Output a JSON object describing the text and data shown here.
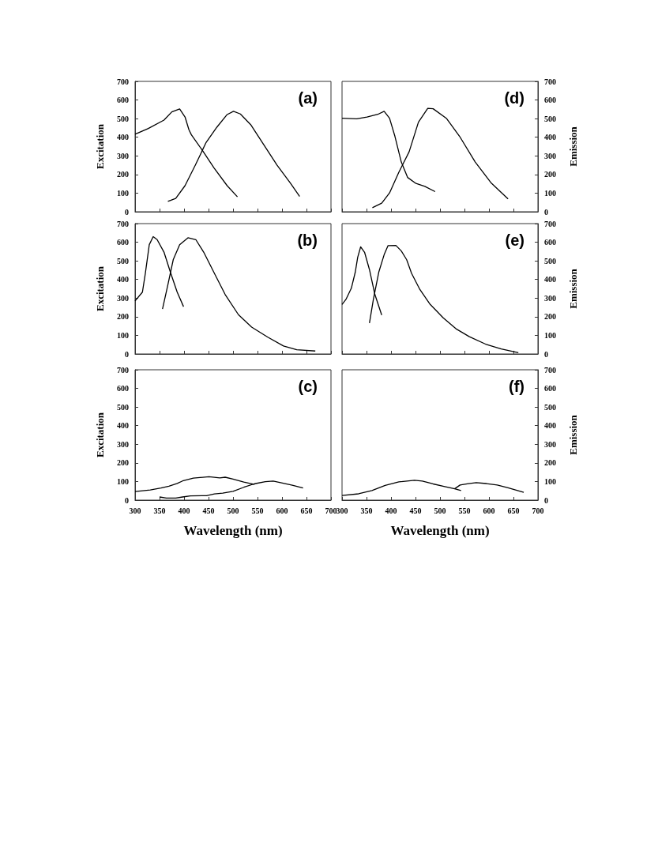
{
  "chart_data": [
    {
      "type": "line",
      "title": "(a)",
      "ylabel": "Excitation",
      "xlim": [
        300,
        700
      ],
      "xticks": [
        300,
        350,
        400,
        450,
        500,
        550,
        600,
        650,
        700
      ],
      "ylim": [
        0,
        700
      ],
      "yticks": [
        0,
        100,
        200,
        300,
        400,
        500,
        600,
        700
      ],
      "tick_labels": "y",
      "series": [
        {
          "color": "#000000",
          "x": [
            300,
            327,
            359,
            375,
            391,
            402,
            410,
            415,
            437,
            461,
            488,
            509
          ],
          "values": [
            416,
            447,
            492,
            536,
            552,
            509,
            440,
            413,
            331,
            236,
            140,
            80
          ]
        },
        {
          "color": "#000000",
          "x": [
            367,
            383,
            402,
            423,
            445,
            467,
            488,
            501,
            515,
            536,
            563,
            590,
            617,
            636
          ],
          "values": [
            56,
            72,
            140,
            250,
            372,
            454,
            522,
            539,
            525,
            468,
            359,
            250,
            154,
            82
          ]
        }
      ]
    },
    {
      "type": "line",
      "title": "(b)",
      "ylabel": "Excitation",
      "xlim": [
        300,
        700
      ],
      "xticks": [
        300,
        350,
        400,
        450,
        500,
        550,
        600,
        650,
        700
      ],
      "ylim": [
        0,
        700
      ],
      "yticks": [
        0,
        100,
        200,
        300,
        400,
        500,
        600,
        700
      ],
      "tick_labels": "y",
      "series": [
        {
          "color": "#000000",
          "x": [
            300,
            315,
            321,
            329,
            337,
            345,
            359,
            372,
            386,
            399
          ],
          "values": [
            285,
            332,
            433,
            587,
            630,
            614,
            547,
            440,
            332,
            254
          ]
        },
        {
          "color": "#000000",
          "x": [
            356,
            367,
            378,
            391,
            408,
            424,
            440,
            462,
            484,
            511,
            538,
            571,
            603,
            630,
            668
          ],
          "values": [
            241,
            372,
            507,
            587,
            624,
            614,
            547,
            433,
            319,
            211,
            144,
            90,
            43,
            23,
            16
          ]
        }
      ]
    },
    {
      "type": "line",
      "title": "(c)",
      "ylabel": "Excitation",
      "xlabel": "Wavelength (nm)",
      "xlim": [
        300,
        700
      ],
      "xticks": [
        300,
        350,
        400,
        450,
        500,
        550,
        600,
        650,
        700
      ],
      "ylim": [
        0,
        700
      ],
      "yticks": [
        0,
        100,
        200,
        300,
        400,
        500,
        600,
        700
      ],
      "series": [
        {
          "color": "#000000",
          "x": [
            300,
            331,
            353,
            369,
            386,
            397,
            419,
            451,
            473,
            484,
            500,
            522,
            544
          ],
          "values": [
            46,
            55,
            65,
            75,
            90,
            103,
            118,
            126,
            119,
            123,
            113,
            97,
            84
          ]
        },
        {
          "color": "#000000",
          "x": [
            350,
            364,
            383,
            397,
            413,
            446,
            462,
            479,
            500,
            522,
            544,
            566,
            582,
            599,
            621,
            643
          ],
          "values": [
            17,
            11,
            11,
            17,
            23,
            24,
            33,
            38,
            47,
            69,
            88,
            99,
            102,
            93,
            80,
            65
          ]
        }
      ]
    },
    {
      "type": "line",
      "title": "(d)",
      "y2label": "Emission",
      "xlim": [
        300,
        700
      ],
      "xticks": [
        300,
        350,
        400,
        450,
        500,
        550,
        600,
        650,
        700
      ],
      "y2lim": [
        0,
        700
      ],
      "y2ticks": [
        0,
        100,
        200,
        300,
        400,
        500,
        600,
        700
      ],
      "tick_labels": "y",
      "series": [
        {
          "color": "#000000",
          "axis": "y2",
          "x": [
            300,
            330,
            351,
            373,
            386,
            397,
            408,
            421,
            434,
            451,
            469,
            490
          ],
          "values": [
            502,
            499,
            509,
            523,
            539,
            502,
            405,
            267,
            184,
            152,
            136,
            108
          ]
        },
        {
          "color": "#000000",
          "axis": "y2",
          "x": [
            362,
            381,
            397,
            416,
            437,
            456,
            475,
            486,
            513,
            540,
            572,
            604,
            639
          ],
          "values": [
            22,
            46,
            101,
            212,
            322,
            481,
            555,
            553,
            502,
            405,
            267,
            156,
            69
          ]
        }
      ]
    },
    {
      "type": "line",
      "title": "(e)",
      "y2label": "Emission",
      "xlim": [
        300,
        700
      ],
      "xticks": [
        300,
        350,
        400,
        450,
        500,
        550,
        600,
        650,
        700
      ],
      "y2lim": [
        0,
        700
      ],
      "y2ticks": [
        0,
        100,
        200,
        300,
        400,
        500,
        600,
        700
      ],
      "tick_labels": "y",
      "series": [
        {
          "color": "#000000",
          "axis": "y2",
          "x": [
            300,
            308,
            319,
            327,
            332,
            338,
            346,
            356,
            367,
            381
          ],
          "values": [
            266,
            293,
            353,
            439,
            519,
            575,
            546,
            453,
            320,
            209
          ]
        },
        {
          "color": "#000000",
          "axis": "y2",
          "x": [
            356,
            364,
            375,
            386,
            394,
            410,
            421,
            432,
            442,
            459,
            480,
            507,
            534,
            560,
            593,
            625,
            660
          ],
          "values": [
            166,
            293,
            439,
            533,
            582,
            583,
            553,
            506,
            433,
            346,
            266,
            193,
            133,
            93,
            53,
            27,
            7
          ]
        }
      ]
    },
    {
      "type": "line",
      "title": "(f)",
      "y2label": "Emission",
      "xlabel": "Wavelength (nm)",
      "xlim": [
        300,
        700
      ],
      "xticks": [
        300,
        350,
        400,
        450,
        500,
        550,
        600,
        650,
        700
      ],
      "y2lim": [
        0,
        700
      ],
      "y2ticks": [
        0,
        100,
        200,
        300,
        400,
        500,
        600,
        700
      ],
      "series": [
        {
          "color": "#000000",
          "axis": "y2",
          "x": [
            300,
            334,
            361,
            388,
            416,
            448,
            464,
            486,
            508,
            530,
            543
          ],
          "values": [
            25,
            34,
            51,
            79,
            98,
            107,
            102,
            87,
            74,
            61,
            51
          ]
        },
        {
          "color": "#000000",
          "axis": "y2",
          "x": [
            530,
            541,
            558,
            574,
            595,
            617,
            639,
            671
          ],
          "values": [
            61,
            81,
            89,
            94,
            89,
            81,
            66,
            42
          ]
        }
      ]
    }
  ]
}
